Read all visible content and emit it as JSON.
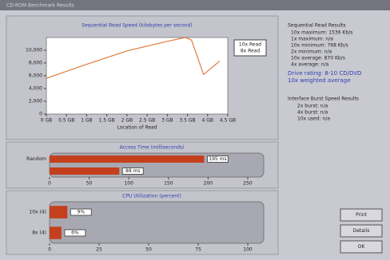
{
  "window_title": "CD-ROM Benchmark Results",
  "chart_data": [
    {
      "type": "line",
      "title": "Sequential Read Speed (kilobytes per second)",
      "x_label": "Location of Read",
      "x": [
        0,
        1,
        2,
        3,
        3.45,
        3.6,
        3.9,
        4.3
      ],
      "series": [
        {
          "name": "10x Read",
          "color": "#e07a3c",
          "values": [
            5600,
            7800,
            9900,
            11400,
            12000,
            11600,
            6200,
            8300
          ]
        }
      ],
      "legend_extra": "8x Read",
      "xlim": [
        0,
        4.5
      ],
      "xticks": [
        {
          "value": 0,
          "label": "0 GB"
        },
        {
          "value": 0.5,
          "label": "0.5 GB"
        },
        {
          "value": 1,
          "label": "1 GB"
        },
        {
          "value": 1.5,
          "label": "1.5 GB"
        },
        {
          "value": 2,
          "label": "2 GB"
        },
        {
          "value": 2.5,
          "label": "2.5 GB"
        },
        {
          "value": 3,
          "label": "3 GB"
        },
        {
          "value": 3.5,
          "label": "3.5 GB"
        },
        {
          "value": 4,
          "label": "4 GB"
        },
        {
          "value": 4.5,
          "label": "4.5 GB"
        }
      ],
      "ylim": [
        0,
        12000
      ],
      "yticks": [
        0,
        {
          "value": 2000,
          "label": "2,000"
        },
        {
          "value": 4000,
          "label": "4,000"
        },
        {
          "value": 6000,
          "label": "6,000"
        },
        {
          "value": 8000,
          "label": "8,000"
        },
        {
          "value": 10000,
          "label": "10,000"
        }
      ]
    },
    {
      "type": "hbar",
      "title": "Access Time (milliseconds)",
      "categories": [
        "Random",
        null
      ],
      "values": [
        195,
        88
      ],
      "value_labels": [
        "195 ms",
        "88 ms"
      ],
      "color": "#c4401c",
      "xlim": [
        0,
        250
      ],
      "xticks": [
        0,
        50,
        100,
        150,
        200,
        250
      ]
    },
    {
      "type": "hbar",
      "title": "CPU Utilization (percent)",
      "categories": [
        "10x (4)",
        "8x (4)"
      ],
      "values": [
        9,
        6
      ],
      "value_labels": [
        "9%",
        "6%"
      ],
      "color": "#c4401c",
      "xlim": [
        0,
        100
      ],
      "xticks": [
        0,
        25,
        50,
        75,
        100
      ]
    }
  ],
  "results": {
    "title": "Sequential Read Results",
    "lines": [
      "10x maximum: 1536 Kb/s",
      "1x maximum: n/a",
      "10x minimum: 768 Kb/s",
      "2x minimum: n/a",
      "10x average: 870 Kb/s",
      "4x average: n/a"
    ],
    "rating": [
      "Drive rating: 8-10 CD/DVD",
      "10x weighted average"
    ],
    "burst_title": "Interface Burst Speed Results",
    "burst_lines": [
      "2x burst: n/a",
      "4x burst: n/a",
      "10x used: n/a"
    ]
  },
  "buttons": [
    "Print",
    "Details",
    "OK"
  ]
}
